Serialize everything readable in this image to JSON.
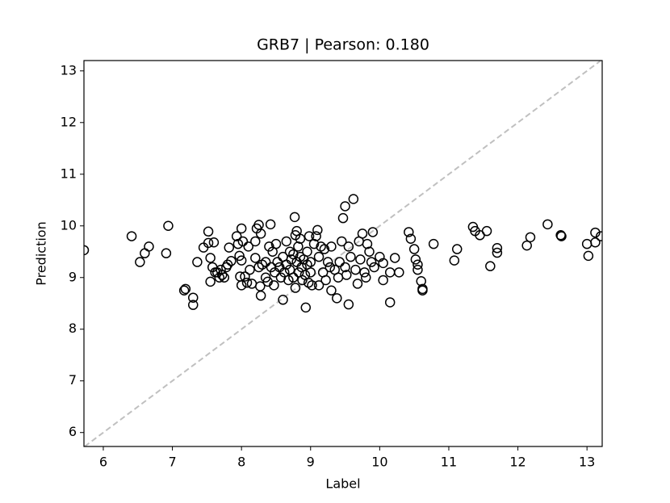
{
  "chart_data": {
    "type": "scatter",
    "title": "GRB7  |  Pearson: 0.180",
    "x_label": "Label",
    "y_label": "Prediction",
    "xlim": [
      5.72,
      13.22
    ],
    "ylim": [
      5.73,
      13.2
    ],
    "xticks": [
      6,
      7,
      8,
      9,
      10,
      11,
      12,
      13
    ],
    "yticks": [
      6,
      7,
      8,
      9,
      10,
      11,
      12,
      13
    ],
    "color": "#000000",
    "reference_line_color": "#c0c0c0",
    "series": [
      {
        "name": "GRB7",
        "x": [
          5.72,
          6.41,
          6.53,
          6.6,
          6.66,
          6.91,
          6.94,
          7.19,
          7.17,
          7.3,
          7.3,
          7.36,
          7.45,
          7.52,
          7.52,
          7.55,
          7.55,
          7.6,
          7.58,
          7.65,
          7.7,
          7.72,
          7.75,
          7.78,
          7.8,
          7.82,
          7.85,
          7.68,
          7.62,
          7.93,
          7.95,
          7.97,
          8.0,
          8.0,
          8.02,
          7.98,
          8.0,
          8.05,
          8.08,
          8.1,
          8.12,
          8.15,
          8.2,
          8.2,
          8.22,
          8.25,
          8.25,
          8.28,
          8.3,
          8.27,
          8.28,
          8.35,
          8.35,
          8.38,
          8.4,
          8.42,
          8.43,
          8.45,
          8.47,
          8.48,
          8.5,
          8.52,
          8.55,
          8.57,
          8.6,
          8.6,
          8.62,
          8.65,
          8.65,
          8.68,
          8.7,
          8.7,
          8.72,
          8.75,
          8.75,
          8.77,
          8.78,
          8.78,
          8.8,
          8.8,
          8.82,
          8.83,
          8.85,
          8.85,
          8.87,
          8.88,
          8.9,
          8.92,
          8.93,
          8.95,
          8.95,
          8.97,
          8.98,
          9.0,
          9.0,
          9.02,
          9.05,
          9.08,
          9.1,
          9.12,
          9.12,
          9.15,
          9.18,
          9.2,
          9.22,
          9.25,
          9.28,
          9.3,
          9.3,
          9.35,
          9.38,
          9.4,
          9.42,
          9.45,
          9.47,
          9.5,
          9.5,
          9.52,
          9.55,
          9.55,
          9.58,
          9.62,
          9.65,
          9.68,
          9.7,
          9.72,
          9.75,
          9.78,
          9.8,
          9.82,
          9.85,
          9.88,
          9.9,
          9.92,
          10.0,
          10.05,
          10.05,
          10.15,
          10.15,
          10.22,
          10.28,
          10.42,
          10.45,
          10.5,
          10.52,
          10.55,
          10.55,
          10.6,
          10.62,
          10.62,
          10.78,
          11.08,
          11.12,
          11.35,
          11.38,
          11.45,
          11.55,
          11.6,
          11.7,
          11.7,
          12.13,
          12.18,
          12.43,
          12.62,
          12.63,
          13.0,
          13.02,
          13.12,
          13.12,
          13.2
        ],
        "values": [
          9.53,
          9.8,
          9.3,
          9.47,
          9.6,
          9.47,
          10.0,
          8.78,
          8.75,
          8.61,
          8.47,
          9.3,
          9.58,
          9.89,
          9.67,
          9.38,
          8.92,
          9.68,
          9.2,
          9.1,
          9.15,
          9.05,
          9.0,
          9.2,
          9.25,
          9.58,
          9.32,
          9.0,
          9.1,
          9.8,
          9.65,
          9.42,
          9.33,
          9.95,
          9.7,
          9.02,
          8.85,
          9.02,
          8.9,
          9.6,
          9.15,
          8.88,
          9.7,
          9.38,
          9.95,
          10.02,
          9.2,
          9.85,
          9.25,
          8.83,
          8.65,
          9.3,
          9.0,
          8.92,
          9.6,
          10.03,
          9.2,
          9.5,
          8.85,
          9.1,
          9.65,
          9.3,
          9.2,
          9.0,
          9.4,
          8.57,
          9.1,
          9.7,
          9.25,
          8.95,
          9.5,
          9.15,
          9.35,
          9.45,
          9.0,
          10.17,
          9.82,
          8.8,
          9.9,
          9.3,
          9.6,
          9.1,
          9.4,
          9.75,
          9.2,
          8.95,
          9.35,
          9.05,
          8.42,
          9.5,
          9.25,
          8.9,
          9.8,
          9.3,
          9.1,
          8.85,
          9.65,
          9.8,
          9.92,
          9.4,
          8.85,
          9.6,
          9.1,
          9.55,
          8.95,
          9.3,
          9.2,
          8.75,
          9.6,
          9.15,
          8.6,
          9.0,
          9.3,
          9.7,
          10.15,
          10.38,
          9.2,
          9.05,
          8.48,
          9.6,
          9.4,
          10.52,
          9.15,
          8.88,
          9.7,
          9.35,
          9.85,
          9.1,
          9.0,
          9.65,
          9.5,
          9.3,
          9.88,
          9.2,
          9.4,
          9.28,
          8.95,
          9.1,
          8.52,
          9.38,
          9.1,
          9.88,
          9.75,
          9.55,
          9.35,
          9.25,
          9.15,
          8.93,
          8.75,
          8.78,
          9.65,
          9.33,
          9.55,
          9.98,
          9.9,
          9.82,
          9.9,
          9.22,
          9.57,
          9.48,
          9.62,
          9.78,
          10.03,
          9.82,
          9.8,
          9.65,
          9.42,
          9.87,
          9.68,
          9.8
        ]
      }
    ]
  }
}
